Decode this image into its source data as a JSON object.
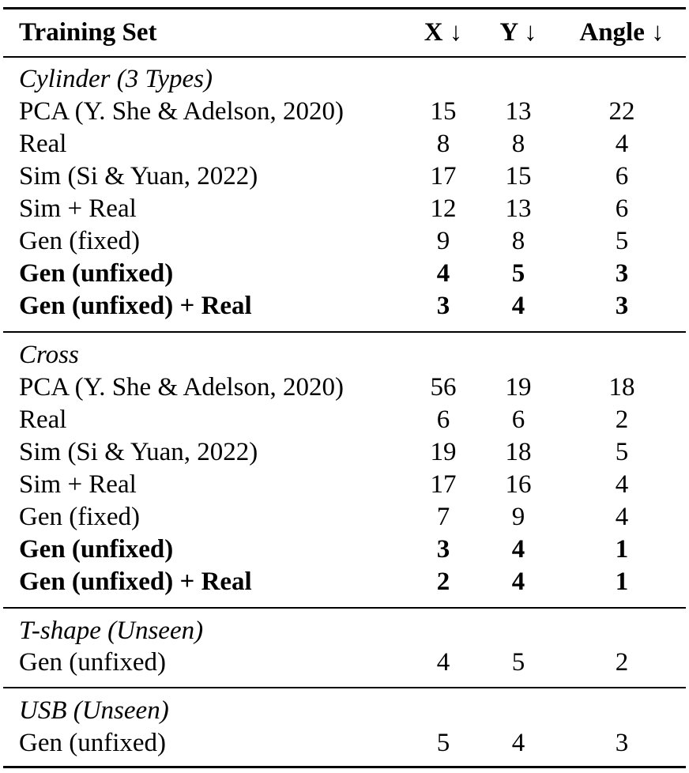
{
  "header": {
    "col_label": "Training Set",
    "col_x": "X ↓",
    "col_y": "Y ↓",
    "col_angle": "Angle ↓"
  },
  "sections": [
    {
      "title": "Cylinder (3 Types)",
      "rows": [
        {
          "label": "PCA (Y. She & Adelson, 2020)",
          "x": "15",
          "y": "13",
          "angle": "22"
        },
        {
          "label": "Real",
          "x": "8",
          "y": "8",
          "angle": "4"
        },
        {
          "label": "Sim (Si & Yuan, 2022)",
          "x": "17",
          "y": "15",
          "angle": "6"
        },
        {
          "label": "Sim + Real",
          "x": "12",
          "y": "13",
          "angle": "6"
        },
        {
          "label": "Gen (fixed)",
          "x": "9",
          "y": "8",
          "angle": "5"
        },
        {
          "label": "Gen (unfixed)",
          "x": "4",
          "y": "5",
          "angle": "3"
        },
        {
          "label": "Gen (unfixed) + Real",
          "x": "3",
          "y": "4",
          "angle": "3"
        }
      ]
    },
    {
      "title": "Cross",
      "rows": [
        {
          "label": "PCA (Y. She & Adelson, 2020)",
          "x": "56",
          "y": "19",
          "angle": "18"
        },
        {
          "label": "Real",
          "x": "6",
          "y": "6",
          "angle": "2"
        },
        {
          "label": "Sim (Si & Yuan, 2022)",
          "x": "19",
          "y": "18",
          "angle": "5"
        },
        {
          "label": "Sim + Real",
          "x": "17",
          "y": "16",
          "angle": "4"
        },
        {
          "label": "Gen (fixed)",
          "x": "7",
          "y": "9",
          "angle": "4"
        },
        {
          "label": "Gen (unfixed)",
          "x": "3",
          "y": "4",
          "angle": "1"
        },
        {
          "label": "Gen (unfixed) + Real",
          "x": "2",
          "y": "4",
          "angle": "1"
        }
      ]
    },
    {
      "title": "T-shape (Unseen)",
      "rows": [
        {
          "label": "Gen (unfixed)",
          "x": "4",
          "y": "5",
          "angle": "2"
        }
      ]
    },
    {
      "title": "USB (Unseen)",
      "rows": [
        {
          "label": "Gen (unfixed)",
          "x": "5",
          "y": "4",
          "angle": "3"
        }
      ]
    }
  ]
}
